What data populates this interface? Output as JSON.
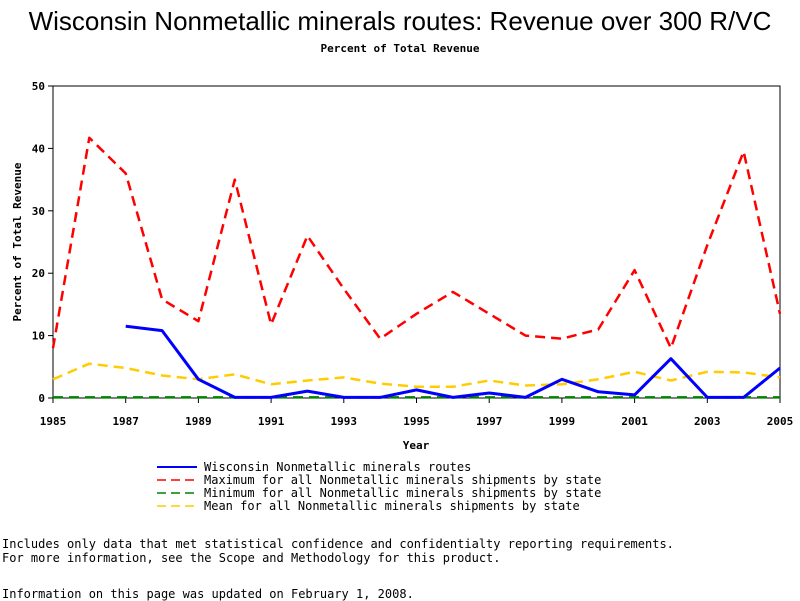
{
  "chart_data": {
    "type": "line",
    "title": "Wisconsin Nonmetallic minerals routes: Revenue over 300 R/VC",
    "subtitle": "Percent of Total Revenue",
    "xlabel": "Year",
    "ylabel": "Percent of Total Revenue",
    "xlim": [
      1985,
      2005
    ],
    "ylim": [
      0,
      50
    ],
    "x_ticks": [
      1985,
      1987,
      1989,
      1991,
      1993,
      1995,
      1997,
      1999,
      2001,
      2003,
      2005
    ],
    "y_ticks": [
      0,
      10,
      20,
      30,
      40,
      50
    ],
    "legend_position": "bottom",
    "series": [
      {
        "name": "Wisconsin Nonmetallic minerals routes",
        "color": "#0000ff",
        "dash": "solid",
        "x": [
          1987,
          1988,
          1989,
          1990,
          1991,
          1992,
          1993,
          1994,
          1995,
          1996,
          1997,
          1998,
          1999,
          2000,
          2001,
          2002,
          2003,
          2004,
          2005
        ],
        "y": [
          11.5,
          10.8,
          3.0,
          0.1,
          0.1,
          1.1,
          0.1,
          0.1,
          1.3,
          0.1,
          0.8,
          0.1,
          3.0,
          1.0,
          0.5,
          6.3,
          0.1,
          0.1,
          4.8
        ]
      },
      {
        "name": "Maximum for all Nonmetallic minerals shipments by state",
        "color": "#ff0000",
        "dash": "dashed",
        "x": [
          1985,
          1986,
          1987,
          1988,
          1989,
          1990,
          1991,
          1992,
          1993,
          1994,
          1995,
          1996,
          1997,
          1998,
          1999,
          2000,
          2001,
          2002,
          2003,
          2004,
          2005
        ],
        "y": [
          8.0,
          41.7,
          36.0,
          15.8,
          12.3,
          35.0,
          11.8,
          26.0,
          17.5,
          9.5,
          13.5,
          17.0,
          13.5,
          10.0,
          9.5,
          11.0,
          20.5,
          8.0,
          24.5,
          39.5,
          13.5
        ]
      },
      {
        "name": "Minimum for all Nonmetallic minerals shipments by state",
        "color": "#008000",
        "dash": "dashed",
        "x": [
          1985,
          1986,
          1987,
          1988,
          1989,
          1990,
          1991,
          1992,
          1993,
          1994,
          1995,
          1996,
          1997,
          1998,
          1999,
          2000,
          2001,
          2002,
          2003,
          2004,
          2005
        ],
        "y": [
          0.1,
          0.1,
          0.1,
          0.1,
          0.1,
          0.1,
          0.1,
          0.1,
          0.1,
          0.1,
          0.1,
          0.1,
          0.1,
          0.1,
          0.1,
          0.1,
          0.1,
          0.1,
          0.1,
          0.1,
          0.1
        ]
      },
      {
        "name": "Mean for all Nonmetallic minerals shipments by state",
        "color": "#ffcc00",
        "dash": "dashed",
        "x": [
          1985,
          1986,
          1987,
          1988,
          1989,
          1990,
          1991,
          1992,
          1993,
          1994,
          1995,
          1996,
          1997,
          1998,
          1999,
          2000,
          2001,
          2002,
          2003,
          2004,
          2005
        ],
        "y": [
          3.0,
          5.5,
          4.8,
          3.6,
          3.0,
          3.8,
          2.2,
          2.8,
          3.3,
          2.3,
          1.8,
          1.8,
          2.8,
          2.0,
          2.2,
          3.0,
          4.2,
          2.8,
          4.2,
          4.1,
          3.3
        ]
      }
    ]
  },
  "notes": {
    "line1": "Includes only data that met statistical confidence and confidentialty reporting requirements.",
    "line2": "For more information, see the Scope and Methodology for this product.",
    "line3": "Information on this page was updated on February 1, 2008."
  }
}
